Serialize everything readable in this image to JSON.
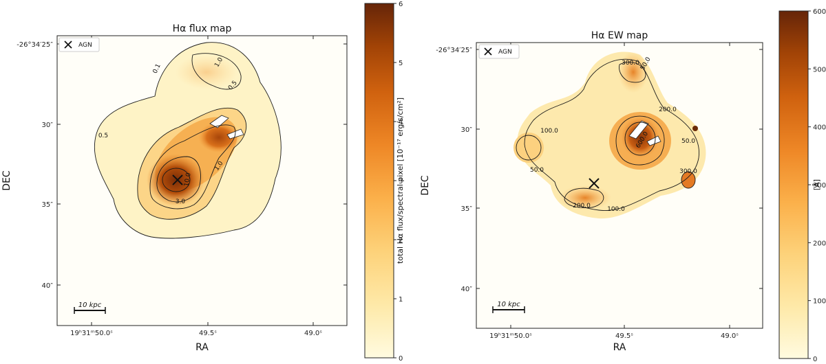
{
  "chart_data": [
    {
      "type": "heatmap",
      "title": "Hα flux map",
      "xlabel": "RA",
      "ylabel": "DEC",
      "x_ticks": [
        "19ʰ31ᵐ50.0ˢ",
        "49.5ˢ",
        "49.0ˢ"
      ],
      "y_ticks": [
        "-26°34′25″",
        "30″",
        "35″",
        "40″"
      ],
      "colorbar": {
        "label": "total Hα flux/spectral pixel [10⁻¹⁷ erg/s/cm²]",
        "range": [
          0,
          6
        ],
        "ticks": [
          "0",
          "1",
          "2",
          "3",
          "4",
          "5",
          "6"
        ],
        "colormap": "YlOrBr"
      },
      "contour_labels": [
        "0.1",
        "0.5",
        "1.0",
        "3.0",
        "10.0"
      ],
      "legend": {
        "marker": "×",
        "label": "AGN",
        "placement": "top-left"
      },
      "scale_bar": "10 kpc"
    },
    {
      "type": "heatmap",
      "title": "Hα EW map",
      "xlabel": "RA",
      "ylabel": "DEC",
      "x_ticks": [
        "19ʰ31ᵐ50.0ˢ",
        "49.5ˢ",
        "49.0ˢ"
      ],
      "y_ticks": [
        "-26°34′25″",
        "30″",
        "35″",
        "40″"
      ],
      "colorbar": {
        "label": "[Å]",
        "range": [
          0,
          600
        ],
        "ticks": [
          "0",
          "100",
          "200",
          "300",
          "400",
          "500",
          "600"
        ],
        "colormap": "YlOrBr"
      },
      "contour_labels": [
        "50.0",
        "100.0",
        "200.0",
        "300.0",
        "600.0"
      ],
      "legend": {
        "marker": "×",
        "label": "AGN",
        "placement": "top-left"
      },
      "scale_bar": "10 kpc"
    }
  ]
}
